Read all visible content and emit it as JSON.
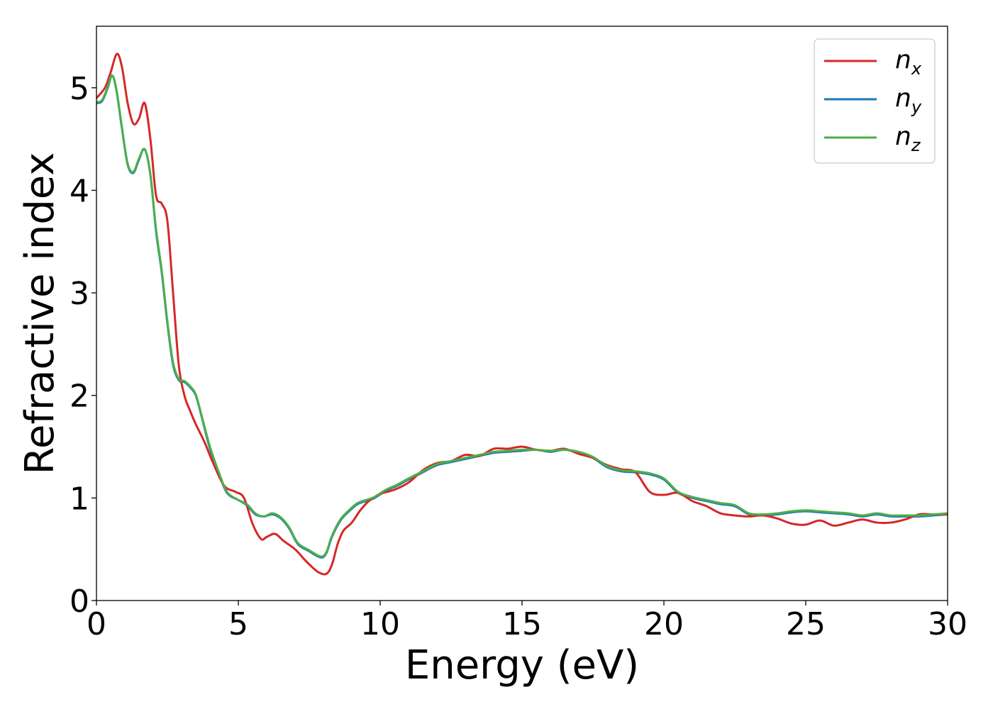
{
  "chart_data": {
    "type": "line",
    "title": "",
    "xlabel": "Energy (eV)",
    "ylabel": "Refractive index",
    "xlim": [
      0,
      30
    ],
    "ylim": [
      0,
      5.6
    ],
    "xticks": [
      0,
      5,
      10,
      15,
      20,
      25,
      30
    ],
    "xtick_labels": [
      "0",
      "5",
      "10",
      "15",
      "20",
      "25",
      "30"
    ],
    "yticks": [
      0,
      1,
      2,
      3,
      4,
      5
    ],
    "ytick_labels": [
      "0",
      "1",
      "2",
      "3",
      "4",
      "5"
    ],
    "grid": false,
    "legend_position": "top-right",
    "series": [
      {
        "name": "n",
        "subscript": "x",
        "color": "#d62728",
        "x": [
          0,
          0.3,
          0.5,
          0.72,
          0.9,
          1.1,
          1.3,
          1.5,
          1.7,
          1.9,
          2.1,
          2.3,
          2.5,
          2.7,
          2.9,
          3.1,
          3.3,
          3.5,
          3.8,
          4.1,
          4.5,
          4.9,
          5.2,
          5.5,
          5.8,
          6.0,
          6.3,
          6.6,
          7.0,
          7.4,
          7.8,
          8.1,
          8.3,
          8.5,
          8.7,
          9.0,
          9.3,
          9.6,
          10.0,
          10.5,
          11.0,
          11.5,
          12.0,
          12.5,
          13.0,
          13.5,
          14.0,
          14.5,
          15.0,
          15.5,
          16.0,
          16.5,
          17.0,
          17.5,
          18.0,
          18.5,
          19.0,
          19.5,
          20.0,
          20.5,
          21.0,
          21.5,
          22.0,
          22.5,
          23.0,
          23.5,
          24.0,
          24.5,
          25.0,
          25.5,
          26.0,
          26.5,
          27.0,
          27.5,
          28.0,
          28.5,
          29.0,
          29.5,
          30.0
        ],
        "y": [
          4.9,
          5.0,
          5.15,
          5.33,
          5.2,
          4.85,
          4.65,
          4.7,
          4.85,
          4.5,
          3.95,
          3.87,
          3.7,
          3.0,
          2.3,
          2.0,
          1.85,
          1.72,
          1.55,
          1.35,
          1.12,
          1.06,
          1.0,
          0.75,
          0.6,
          0.62,
          0.65,
          0.58,
          0.5,
          0.38,
          0.28,
          0.26,
          0.35,
          0.55,
          0.68,
          0.76,
          0.88,
          0.97,
          1.04,
          1.08,
          1.15,
          1.27,
          1.34,
          1.36,
          1.42,
          1.41,
          1.48,
          1.48,
          1.5,
          1.47,
          1.46,
          1.48,
          1.43,
          1.39,
          1.32,
          1.28,
          1.25,
          1.06,
          1.03,
          1.05,
          0.97,
          0.92,
          0.85,
          0.83,
          0.82,
          0.83,
          0.8,
          0.75,
          0.74,
          0.78,
          0.73,
          0.76,
          0.79,
          0.76,
          0.76,
          0.79,
          0.84,
          0.84,
          0.84
        ]
      },
      {
        "name": "n",
        "subscript": "y",
        "color": "#1f77b4",
        "x": [
          0,
          0.2,
          0.4,
          0.55,
          0.7,
          0.9,
          1.1,
          1.3,
          1.5,
          1.7,
          1.9,
          2.1,
          2.3,
          2.5,
          2.7,
          2.9,
          3.1,
          3.3,
          3.5,
          3.7,
          4.0,
          4.3,
          4.6,
          5.0,
          5.3,
          5.6,
          5.9,
          6.2,
          6.5,
          6.8,
          7.1,
          7.5,
          7.9,
          8.1,
          8.3,
          8.6,
          8.9,
          9.2,
          9.5,
          9.8,
          10.2,
          10.6,
          11.0,
          11.5,
          12.0,
          12.5,
          13.0,
          13.5,
          14.0,
          14.5,
          15.0,
          15.5,
          16.0,
          16.5,
          17.0,
          17.5,
          18.0,
          18.5,
          19.0,
          19.5,
          20.0,
          20.5,
          21.0,
          21.5,
          22.0,
          22.5,
          23.0,
          23.5,
          24.0,
          24.5,
          25.0,
          25.5,
          26.0,
          26.5,
          27.0,
          27.5,
          28.0,
          28.5,
          29.0,
          29.5,
          30.0
        ],
        "y": [
          4.85,
          4.87,
          5.0,
          5.12,
          4.98,
          4.6,
          4.25,
          4.17,
          4.3,
          4.4,
          4.15,
          3.6,
          3.2,
          2.7,
          2.3,
          2.15,
          2.13,
          2.08,
          2.0,
          1.8,
          1.48,
          1.25,
          1.05,
          0.98,
          0.93,
          0.84,
          0.82,
          0.84,
          0.8,
          0.7,
          0.55,
          0.48,
          0.42,
          0.46,
          0.62,
          0.78,
          0.87,
          0.94,
          0.97,
          1.0,
          1.07,
          1.12,
          1.18,
          1.25,
          1.32,
          1.35,
          1.38,
          1.41,
          1.44,
          1.45,
          1.46,
          1.47,
          1.45,
          1.47,
          1.44,
          1.39,
          1.3,
          1.26,
          1.25,
          1.23,
          1.18,
          1.05,
          1.0,
          0.97,
          0.94,
          0.92,
          0.84,
          0.83,
          0.84,
          0.86,
          0.87,
          0.86,
          0.85,
          0.84,
          0.82,
          0.84,
          0.82,
          0.82,
          0.82,
          0.83,
          0.84
        ]
      },
      {
        "name": "n",
        "subscript": "z",
        "color": "#4daf4a",
        "x": [
          0,
          0.2,
          0.4,
          0.55,
          0.7,
          0.9,
          1.1,
          1.3,
          1.5,
          1.7,
          1.9,
          2.1,
          2.3,
          2.5,
          2.7,
          2.9,
          3.1,
          3.3,
          3.5,
          3.7,
          4.0,
          4.3,
          4.6,
          5.0,
          5.3,
          5.6,
          5.9,
          6.2,
          6.5,
          6.8,
          7.1,
          7.5,
          7.9,
          8.1,
          8.3,
          8.6,
          8.9,
          9.2,
          9.5,
          9.8,
          10.2,
          10.6,
          11.0,
          11.5,
          12.0,
          12.5,
          13.0,
          13.5,
          14.0,
          14.5,
          15.0,
          15.5,
          16.0,
          16.5,
          17.0,
          17.5,
          18.0,
          18.5,
          19.0,
          19.5,
          20.0,
          20.5,
          21.0,
          21.5,
          22.0,
          22.5,
          23.0,
          23.5,
          24.0,
          24.5,
          25.0,
          25.5,
          26.0,
          26.5,
          27.0,
          27.5,
          28.0,
          28.5,
          29.0,
          29.5,
          30.0
        ],
        "y": [
          4.86,
          4.88,
          5.01,
          5.12,
          4.99,
          4.61,
          4.26,
          4.18,
          4.31,
          4.4,
          4.16,
          3.62,
          3.22,
          2.72,
          2.32,
          2.16,
          2.14,
          2.09,
          2.01,
          1.81,
          1.5,
          1.26,
          1.06,
          0.98,
          0.94,
          0.85,
          0.82,
          0.85,
          0.81,
          0.71,
          0.56,
          0.49,
          0.43,
          0.47,
          0.63,
          0.79,
          0.88,
          0.95,
          0.98,
          1.01,
          1.08,
          1.13,
          1.19,
          1.26,
          1.33,
          1.36,
          1.39,
          1.42,
          1.45,
          1.46,
          1.47,
          1.47,
          1.46,
          1.47,
          1.45,
          1.4,
          1.31,
          1.27,
          1.26,
          1.24,
          1.19,
          1.06,
          1.01,
          0.98,
          0.95,
          0.93,
          0.85,
          0.84,
          0.85,
          0.87,
          0.88,
          0.87,
          0.86,
          0.85,
          0.83,
          0.85,
          0.83,
          0.83,
          0.83,
          0.84,
          0.85
        ]
      }
    ]
  }
}
